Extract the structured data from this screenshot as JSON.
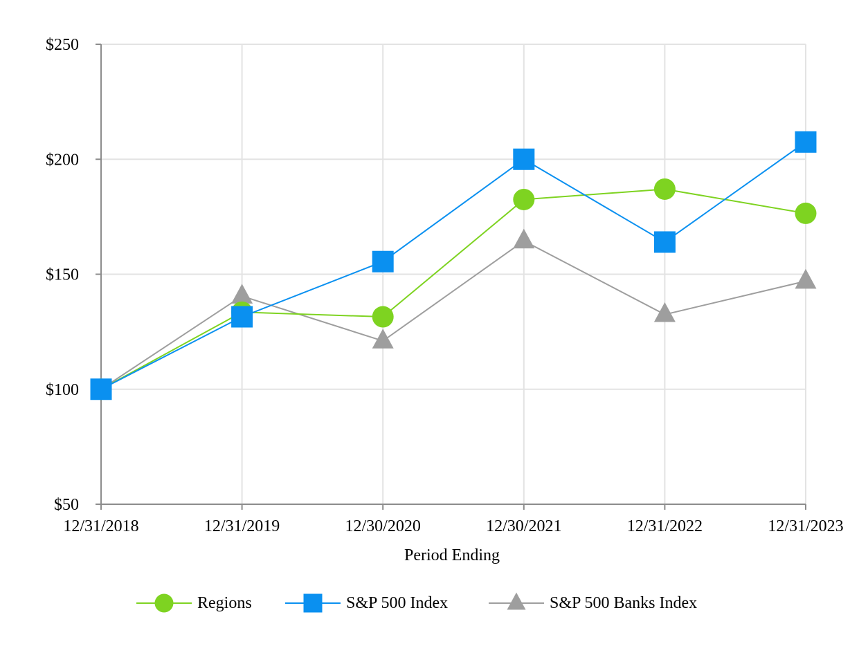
{
  "chart_data": {
    "type": "line",
    "title": "",
    "xlabel": "Period Ending",
    "ylabel": "",
    "categories": [
      "12/31/2018",
      "12/31/2019",
      "12/30/2020",
      "12/30/2021",
      "12/31/2022",
      "12/31/2023"
    ],
    "ylim": [
      50,
      250
    ],
    "yticks": [
      50,
      100,
      150,
      200,
      250
    ],
    "ytick_labels": [
      "$50",
      "$100",
      "$150",
      "$200",
      "$250"
    ],
    "grid": true,
    "legend_position": "bottom",
    "series": [
      {
        "name": "Regions",
        "color": "#7ed321",
        "marker": "circle",
        "values": [
          100,
          133.5,
          131.5,
          182.5,
          187,
          176.5
        ]
      },
      {
        "name": "S&P 500 Index",
        "color": "#0a90f0",
        "marker": "square",
        "values": [
          100,
          131.5,
          155.5,
          200,
          164,
          207.5
        ]
      },
      {
        "name": "S&P 500 Banks Index",
        "color": "#9e9e9e",
        "marker": "triangle",
        "values": [
          100,
          140.5,
          121,
          164.5,
          132.5,
          147
        ]
      }
    ]
  }
}
